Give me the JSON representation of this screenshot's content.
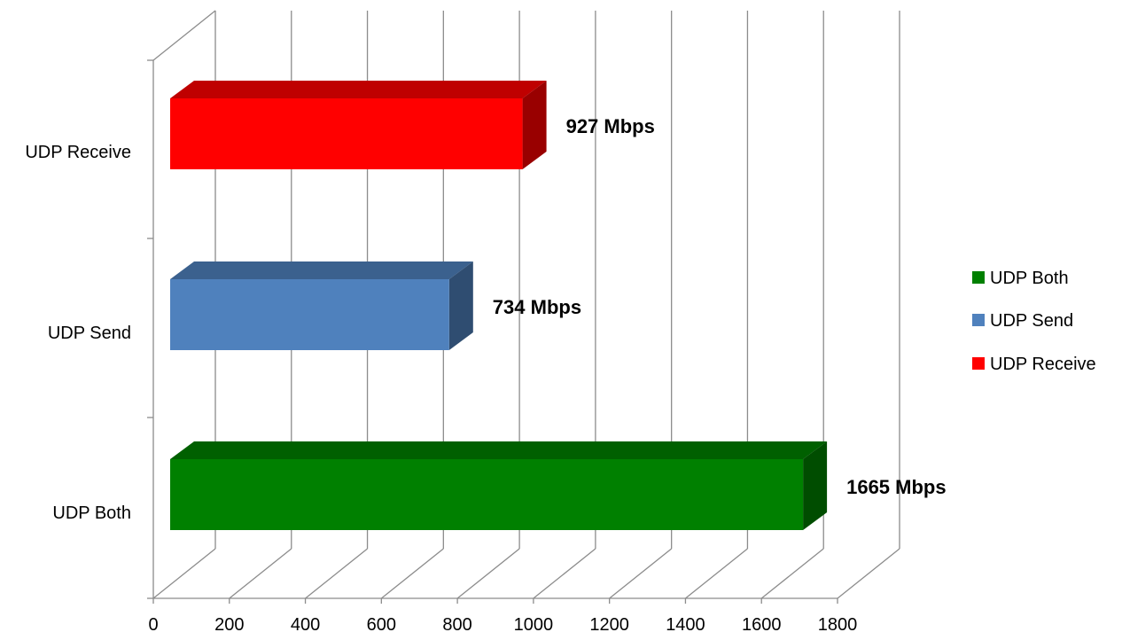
{
  "chart_data": {
    "type": "bar",
    "orientation": "horizontal",
    "three_d": true,
    "categories": [
      "UDP Receive",
      "UDP Send",
      "UDP Both"
    ],
    "series": [
      {
        "name": "UDP Both",
        "category": "UDP Both",
        "value": 1665,
        "label": "1665 Mbps",
        "color": "#008000"
      },
      {
        "name": "UDP Send",
        "category": "UDP Send",
        "value": 734,
        "label": "734 Mbps",
        "color": "#4F81BD"
      },
      {
        "name": "UDP Receive",
        "category": "UDP Receive",
        "value": 927,
        "label": "927 Mbps",
        "color": "#FF0000"
      }
    ],
    "xlim": [
      0,
      1800
    ],
    "xticks": [
      "0",
      "200",
      "400",
      "600",
      "800",
      "1000",
      "1200",
      "1400",
      "1600",
      "1800"
    ],
    "grid": true,
    "legend_position": "right",
    "title": "",
    "xlabel": "",
    "ylabel": ""
  }
}
